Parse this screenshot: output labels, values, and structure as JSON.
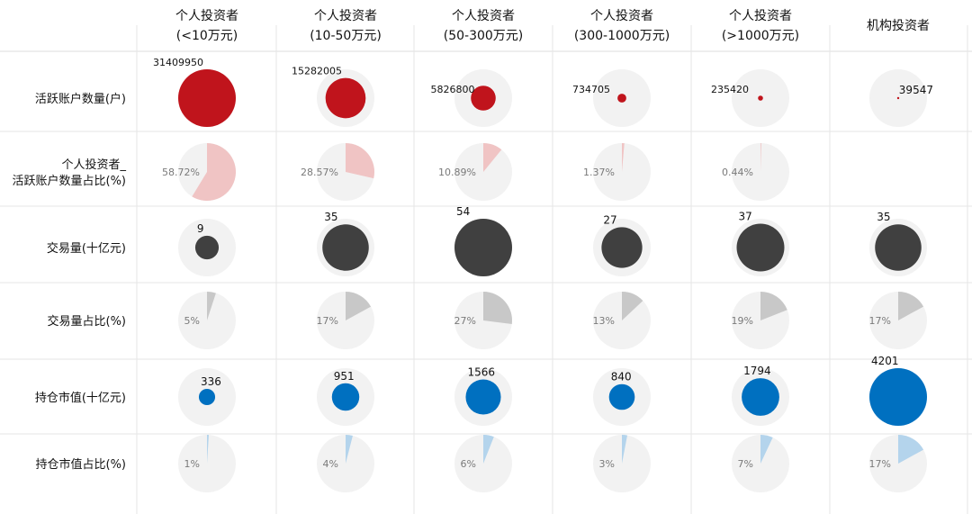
{
  "chart_data": {
    "type": "table",
    "columns": [
      {
        "line1": "个人投资者",
        "line2": "(<10万元)"
      },
      {
        "line1": "个人投资者",
        "line2": "(10-50万元)"
      },
      {
        "line1": "个人投资者",
        "line2": "(50-300万元)"
      },
      {
        "line1": "个人投资者",
        "line2": "(300-1000万元)"
      },
      {
        "line1": "个人投资者",
        "line2": "(>1000万元)"
      },
      {
        "line1": "机构投资者",
        "line2": ""
      }
    ],
    "rows": [
      {
        "label_lines": [
          "活跃账户数量(户)"
        ],
        "kind": "bubble",
        "color": "#c0141c",
        "values": [
          31409950,
          15282005,
          5826800,
          734705,
          235420,
          39547
        ]
      },
      {
        "label_lines": [
          "个人投资者_",
          "活跃账户数量占比(%)"
        ],
        "kind": "pie",
        "color": "#f0c4c4",
        "values": [
          58.72,
          28.57,
          10.89,
          1.37,
          0.44,
          null
        ],
        "suffix": "%"
      },
      {
        "label_lines": [
          "交易量(十亿元)"
        ],
        "kind": "bubble",
        "color": "#404040",
        "values": [
          9,
          35,
          54,
          27,
          37,
          35
        ]
      },
      {
        "label_lines": [
          "交易量占比(%)"
        ],
        "kind": "pie",
        "color": "#c8c8c8",
        "values": [
          5,
          17,
          27,
          13,
          19,
          17
        ],
        "suffix": "%"
      },
      {
        "label_lines": [
          "持仓市值(十亿元)"
        ],
        "kind": "bubble",
        "color": "#0070c0",
        "values": [
          336,
          951,
          1566,
          840,
          1794,
          4201
        ]
      },
      {
        "label_lines": [
          "持仓市值占比(%)"
        ],
        "kind": "pie",
        "color": "#b4d4ec",
        "values": [
          1,
          4,
          6,
          3,
          7,
          17
        ],
        "suffix": "%"
      }
    ]
  }
}
